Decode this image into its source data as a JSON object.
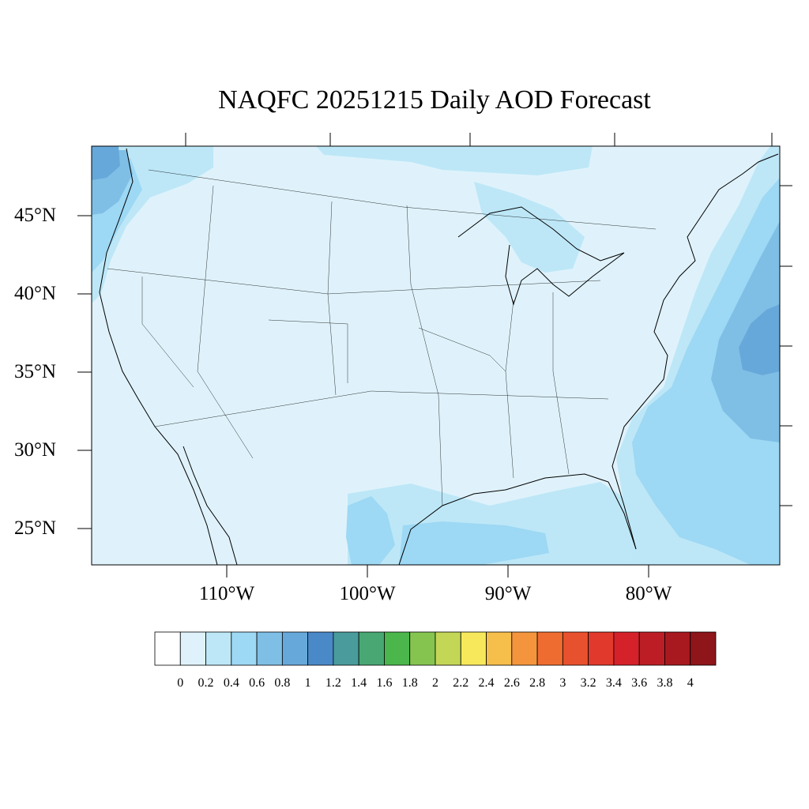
{
  "title": "NAQFC 20251215 Daily AOD Forecast",
  "lat_labels": [
    "45°N",
    "40°N",
    "35°N",
    "30°N",
    "25°N"
  ],
  "lon_labels": [
    "110°W",
    "100°W",
    "90°W",
    "80°W"
  ],
  "colorbar": {
    "labels": [
      "0",
      "0.2",
      "0.4",
      "0.6",
      "0.8",
      "1",
      "1.2",
      "1.4",
      "1.6",
      "1.8",
      "2",
      "2.2",
      "2.4",
      "2.6",
      "2.8",
      "3",
      "3.2",
      "3.4",
      "3.6",
      "3.8",
      "4"
    ],
    "colors": [
      "#ffffff",
      "#dff2fb",
      "#bde7f7",
      "#9dd8f4",
      "#7fbfe6",
      "#67a8da",
      "#4a89c8",
      "#4a9b9c",
      "#48a772",
      "#4ab64b",
      "#85c54f",
      "#c4d656",
      "#f6e85a",
      "#f6be4b",
      "#f4953d",
      "#ef6c30",
      "#e8512d",
      "#e1392b",
      "#d4212a",
      "#bd1e25",
      "#a8181f",
      "#8e1519"
    ]
  },
  "map_colors": {
    "background": "#dff2fb",
    "level_1": "#bde7f7",
    "level_2": "#9dd8f4",
    "level_3": "#7fbfe6",
    "level_4": "#67a8da"
  }
}
